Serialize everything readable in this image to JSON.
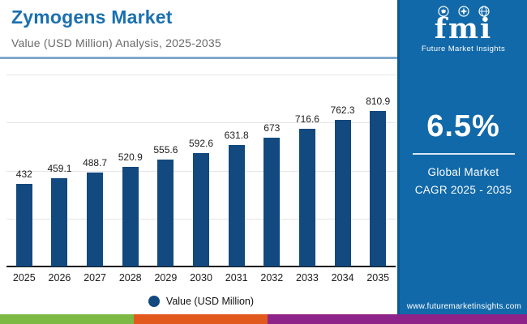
{
  "header": {
    "title": "Zymogens Market",
    "subtitle": "Value (USD Million) Analysis, 2025-2035"
  },
  "chart_data": {
    "type": "bar",
    "title": "Zymogens Market Value (USD Million) Analysis, 2025-2035",
    "categories": [
      "2025",
      "2026",
      "2027",
      "2028",
      "2029",
      "2030",
      "2031",
      "2032",
      "2033",
      "2034",
      "2035"
    ],
    "values": [
      432,
      459.1,
      488.7,
      520.9,
      555.6,
      592.6,
      631.8,
      673,
      716.6,
      762.3,
      810.9
    ],
    "xlabel": "",
    "ylabel": "Value (USD Million)",
    "ylim": [
      0,
      1000
    ],
    "gridlines": [
      250,
      500,
      750,
      1000
    ],
    "grid": "horizontal-only",
    "bar_color": "#12497E",
    "legend": {
      "label": "Value (USD Million)",
      "color": "#12497E",
      "position": "bottom"
    }
  },
  "sidebar": {
    "bg_color": "#1169A9",
    "logo_text": "fmi",
    "logo_sub": "Future Market Insights",
    "stat_value": "6.5%",
    "stat_line1": "Global Market",
    "stat_line2": "CAGR 2025 - 2035",
    "url": "www.futuremarketinsights.com"
  },
  "footer": {
    "strip_colors": [
      "#7CB944",
      "#E2591D",
      "#8E2489"
    ]
  }
}
